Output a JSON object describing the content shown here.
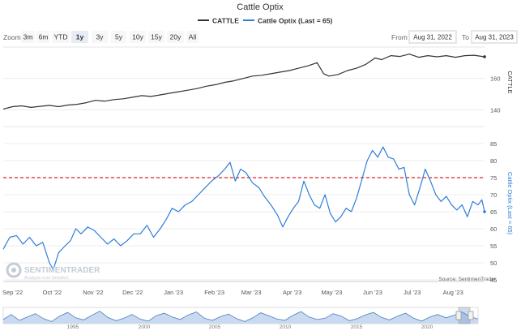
{
  "title": "Cattle Optix",
  "legend": [
    {
      "name": "CATTLE",
      "color": "#333333"
    },
    {
      "name": "Cattle Optix (Last = 65)",
      "color": "#2f7ed8"
    }
  ],
  "zoom": {
    "label": "Zoom",
    "buttons": [
      "3m",
      "6m",
      "YTD",
      "1y",
      "3y",
      "5y",
      "10y",
      "15y",
      "20y",
      "All"
    ],
    "selected": "1y"
  },
  "range": {
    "from_label": "From",
    "from_value": "Aug 31, 2022",
    "to_label": "To",
    "to_value": "Aug 31, 2023"
  },
  "watermark": {
    "brand": "SENTIMENTRADER",
    "tagline": "Analysis over Emotion"
  },
  "source": "Source: SentimenTrader",
  "colors": {
    "cattle": "#333333",
    "optix": "#2f7ed8",
    "threshold": "#dd2222",
    "navigator_fill": "#c9d9ef",
    "navigator_line": "#4a7fc1"
  },
  "chart_data": {
    "type": "line",
    "x_axis": {
      "type": "date",
      "range": [
        "2022-08-31",
        "2023-08-31"
      ],
      "tick_labels": [
        "Sep '22",
        "Oct '22",
        "Nov '22",
        "Dec '22",
        "Jan '23",
        "Feb '23",
        "Mar '23",
        "Apr '23",
        "May '23",
        "Jun '23",
        "Jul '23",
        "Aug '23"
      ]
    },
    "panels": [
      {
        "series_name": "CATTLE",
        "axis_label": "CATTLE",
        "ylim": [
          135,
          180
        ],
        "y_ticks": [
          140,
          160
        ],
        "points": [
          [
            "2022-08-31",
            140.5
          ],
          [
            "2022-09-07",
            142.0
          ],
          [
            "2022-09-14",
            142.5
          ],
          [
            "2022-09-21",
            141.5
          ],
          [
            "2022-09-28",
            142.2
          ],
          [
            "2022-10-05",
            142.8
          ],
          [
            "2022-10-12",
            142.0
          ],
          [
            "2022-10-19",
            143.0
          ],
          [
            "2022-10-26",
            143.5
          ],
          [
            "2022-11-02",
            144.5
          ],
          [
            "2022-11-09",
            146.0
          ],
          [
            "2022-11-16",
            145.5
          ],
          [
            "2022-11-23",
            146.5
          ],
          [
            "2022-11-30",
            147.0
          ],
          [
            "2022-12-07",
            148.0
          ],
          [
            "2022-12-14",
            149.0
          ],
          [
            "2022-12-21",
            148.5
          ],
          [
            "2022-12-28",
            149.5
          ],
          [
            "2023-01-04",
            150.5
          ],
          [
            "2023-01-11",
            151.5
          ],
          [
            "2023-01-18",
            152.5
          ],
          [
            "2023-01-25",
            153.5
          ],
          [
            "2023-02-01",
            155.0
          ],
          [
            "2023-02-08",
            156.0
          ],
          [
            "2023-02-15",
            157.5
          ],
          [
            "2023-02-22",
            158.5
          ],
          [
            "2023-03-01",
            160.0
          ],
          [
            "2023-03-08",
            161.5
          ],
          [
            "2023-03-15",
            162.0
          ],
          [
            "2023-03-22",
            163.0
          ],
          [
            "2023-03-29",
            164.0
          ],
          [
            "2023-04-05",
            165.0
          ],
          [
            "2023-04-12",
            166.5
          ],
          [
            "2023-04-19",
            168.0
          ],
          [
            "2023-04-26",
            170.0
          ],
          [
            "2023-05-01",
            163.0
          ],
          [
            "2023-05-05",
            161.5
          ],
          [
            "2023-05-12",
            162.5
          ],
          [
            "2023-05-19",
            165.0
          ],
          [
            "2023-05-26",
            166.5
          ],
          [
            "2023-06-02",
            169.0
          ],
          [
            "2023-06-09",
            173.0
          ],
          [
            "2023-06-14",
            172.0
          ],
          [
            "2023-06-21",
            174.5
          ],
          [
            "2023-06-28",
            174.0
          ],
          [
            "2023-07-05",
            175.5
          ],
          [
            "2023-07-12",
            173.5
          ],
          [
            "2023-07-19",
            174.5
          ],
          [
            "2023-07-26",
            173.8
          ],
          [
            "2023-08-02",
            174.5
          ],
          [
            "2023-08-09",
            173.5
          ],
          [
            "2023-08-16",
            174.5
          ],
          [
            "2023-08-23",
            174.8
          ],
          [
            "2023-08-31",
            173.8
          ]
        ]
      },
      {
        "series_name": "Cattle Optix (Last = 65)",
        "axis_label": "Cattle Optix (Last = 65)",
        "ylim": [
          45,
          90
        ],
        "y_ticks": [
          45,
          50,
          55,
          60,
          65,
          70,
          75,
          80,
          85
        ],
        "threshold": 75,
        "points": [
          [
            "2022-08-31",
            54.0
          ],
          [
            "2022-09-05",
            57.5
          ],
          [
            "2022-09-10",
            58.0
          ],
          [
            "2022-09-15",
            55.5
          ],
          [
            "2022-09-20",
            57.5
          ],
          [
            "2022-09-25",
            55.0
          ],
          [
            "2022-09-30",
            56.0
          ],
          [
            "2022-10-05",
            50.0
          ],
          [
            "2022-10-08",
            48.0
          ],
          [
            "2022-10-12",
            53.0
          ],
          [
            "2022-10-17",
            55.0
          ],
          [
            "2022-10-21",
            56.5
          ],
          [
            "2022-10-25",
            60.0
          ],
          [
            "2022-10-29",
            58.5
          ],
          [
            "2022-11-03",
            60.5
          ],
          [
            "2022-11-08",
            59.5
          ],
          [
            "2022-11-13",
            57.5
          ],
          [
            "2022-11-18",
            55.5
          ],
          [
            "2022-11-23",
            57.0
          ],
          [
            "2022-11-28",
            55.0
          ],
          [
            "2022-12-03",
            56.5
          ],
          [
            "2022-12-08",
            58.5
          ],
          [
            "2022-12-13",
            58.5
          ],
          [
            "2022-12-18",
            61.0
          ],
          [
            "2022-12-23",
            57.5
          ],
          [
            "2022-12-28",
            60.0
          ],
          [
            "2023-01-02",
            63.0
          ],
          [
            "2023-01-06",
            66.0
          ],
          [
            "2023-01-11",
            65.0
          ],
          [
            "2023-01-16",
            67.0
          ],
          [
            "2023-01-21",
            68.0
          ],
          [
            "2023-01-26",
            70.0
          ],
          [
            "2023-01-31",
            72.0
          ],
          [
            "2023-02-05",
            74.0
          ],
          [
            "2023-02-10",
            75.5
          ],
          [
            "2023-02-15",
            77.5
          ],
          [
            "2023-02-19",
            79.5
          ],
          [
            "2023-02-23",
            74.0
          ],
          [
            "2023-02-27",
            77.5
          ],
          [
            "2023-03-03",
            76.5
          ],
          [
            "2023-03-08",
            73.5
          ],
          [
            "2023-03-13",
            72.0
          ],
          [
            "2023-03-17",
            69.5
          ],
          [
            "2023-03-22",
            67.0
          ],
          [
            "2023-03-27",
            64.0
          ],
          [
            "2023-03-31",
            60.5
          ],
          [
            "2023-04-04",
            63.5
          ],
          [
            "2023-04-08",
            66.0
          ],
          [
            "2023-04-12",
            68.0
          ],
          [
            "2023-04-16",
            74.0
          ],
          [
            "2023-04-20",
            70.0
          ],
          [
            "2023-04-24",
            67.0
          ],
          [
            "2023-04-28",
            66.0
          ],
          [
            "2023-05-02",
            70.0
          ],
          [
            "2023-05-06",
            64.5
          ],
          [
            "2023-05-10",
            62.0
          ],
          [
            "2023-05-14",
            63.5
          ],
          [
            "2023-05-18",
            66.0
          ],
          [
            "2023-05-22",
            65.0
          ],
          [
            "2023-05-26",
            69.0
          ],
          [
            "2023-05-30",
            74.5
          ],
          [
            "2023-06-03",
            80.0
          ],
          [
            "2023-06-07",
            83.0
          ],
          [
            "2023-06-11",
            81.0
          ],
          [
            "2023-06-15",
            84.0
          ],
          [
            "2023-06-19",
            81.0
          ],
          [
            "2023-06-23",
            80.5
          ],
          [
            "2023-06-27",
            77.5
          ],
          [
            "2023-07-01",
            78.0
          ],
          [
            "2023-07-05",
            70.0
          ],
          [
            "2023-07-09",
            67.0
          ],
          [
            "2023-07-13",
            72.0
          ],
          [
            "2023-07-17",
            77.5
          ],
          [
            "2023-07-21",
            74.0
          ],
          [
            "2023-07-25",
            70.0
          ],
          [
            "2023-07-29",
            68.0
          ],
          [
            "2023-08-02",
            69.5
          ],
          [
            "2023-08-06",
            67.0
          ],
          [
            "2023-08-10",
            65.5
          ],
          [
            "2023-08-14",
            67.0
          ],
          [
            "2023-08-18",
            63.5
          ],
          [
            "2023-08-22",
            68.0
          ],
          [
            "2023-08-26",
            67.0
          ],
          [
            "2023-08-29",
            68.5
          ],
          [
            "2023-08-31",
            65.0
          ]
        ]
      }
    ],
    "navigator": {
      "tick_labels": [
        "1995",
        "2000",
        "2005",
        "2010",
        "2015",
        "2020"
      ],
      "values": [
        60,
        72,
        58,
        66,
        74,
        62,
        55,
        68,
        77,
        64,
        59,
        70,
        80,
        65,
        57,
        63,
        72,
        61,
        56,
        69,
        75,
        66,
        60,
        71,
        78,
        63,
        58,
        67,
        73,
        62,
        55,
        64,
        76,
        69,
        61,
        58,
        70,
        79,
        66,
        60,
        63,
        74,
        68,
        57,
        62,
        71,
        77,
        65,
        59,
        68,
        75,
        63,
        56,
        66,
        72,
        64,
        70,
        78,
        67,
        61
      ]
    }
  }
}
